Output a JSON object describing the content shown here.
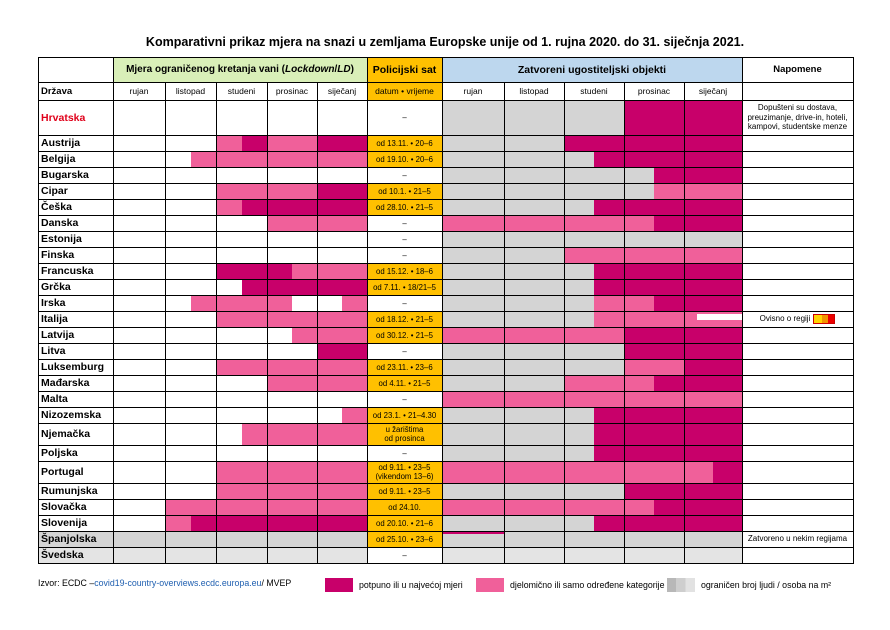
{
  "title": "Komparativni prikaz mjera na snazi u zemljama Europske unije od 1. rujna 2020. do 31. siječnja 2021.",
  "headers": {
    "lockdown_prefix": "Mjera ograničenog kretanja vani (",
    "lockdown_italic": "Lockdown",
    "lockdown_mid": "/",
    "lockdown_italic2": "LD",
    "lockdown_suffix": ")",
    "police": "Policijski sat",
    "closed": "Zatvoreni ugostiteljski objekti",
    "notes": "Napomene",
    "country_col": "Država",
    "police_sub": "datum • vrijeme",
    "months": [
      "rujan",
      "listopad",
      "studeni",
      "prosinac",
      "siječanj"
    ]
  },
  "colors": {
    "dark": "#C8006A",
    "light": "#F0609A",
    "grey": "#D4D4D4",
    "police_bg": "#FFC000",
    "lockdown_hdr": "#D9EFB8",
    "closed_hdr": "#BDD7EE",
    "hrvatska": "#E0001A"
  },
  "rows": [
    {
      "name": "Hrvatska",
      "police": "–",
      "note": "Dopušteni su dostava,\npreuzimanje, drive-in, hoteli,\nkampovi, studentske menze",
      "lock": "WWWWWWWWWW",
      "closed": "GGGGGGDDDD"
    },
    {
      "name": "Austrija",
      "police": "od 13.11. • 20–6",
      "note": "",
      "lock": "WWWWLDLLDD",
      "closed": "GGGGDDDDDD"
    },
    {
      "name": "Belgija",
      "police": "od 19.10. • 20–6",
      "note": "",
      "lock": "WWWLLLLLLL",
      "closed": "GGGGGDDDDD"
    },
    {
      "name": "Bugarska",
      "police": "–",
      "note": "",
      "lock": "WWWWWWWWWW",
      "closed": "GGGGGGGDDD"
    },
    {
      "name": "Cipar",
      "police": "od 10.1. • 21–5",
      "note": "",
      "lock": "WWWWLLLLDD",
      "closed": "GGGGGGGLLL"
    },
    {
      "name": "Češka",
      "police": "od 28.10. • 21–5",
      "note": "",
      "lock": "WWWWLDDDDD",
      "closed": "GGGGGDDDDD"
    },
    {
      "name": "Danska",
      "police": "–",
      "note": "",
      "lock": "WWWWWWLLLL",
      "closed": "LLLLLLLDDD"
    },
    {
      "name": "Estonija",
      "police": "–",
      "note": "",
      "lock": "WWWWWWWWWW",
      "closed": "GGGGGGGGGG"
    },
    {
      "name": "Finska",
      "police": "–",
      "note": "",
      "lock": "WWWWWWWWWW",
      "closed": "GGGGLLLLLL"
    },
    {
      "name": "Francuska",
      "police": "od 15.12. • 18–6",
      "note": "",
      "lock": "WWWWDDDLLL",
      "closed": "GGGGGDDDDD"
    },
    {
      "name": "Grčka",
      "police": "od 7.11. • 18/21–5",
      "note": "",
      "lock": "WWWWWDDDDD",
      "closed": "GGGGGDDDDD"
    },
    {
      "name": "Irska",
      "police": "–",
      "note": "",
      "lock": "WWWLLLLWWL",
      "closed": "GGGGGLLDDD"
    },
    {
      "name": "Italija",
      "police": "od 18.12. • 21–5",
      "note": "Ovisno o regiji",
      "lock": "WWWWLLLLLL",
      "closed": "GGGGGLLLLL"
    },
    {
      "name": "Latvija",
      "police": "od 30.12. • 21–5",
      "note": "",
      "lock": "WWWWWWWLLL",
      "closed": "LLLLLLDDDD"
    },
    {
      "name": "Litva",
      "police": "–",
      "note": "",
      "lock": "WWWWWWWWDD",
      "closed": "GGGGGGDDDD"
    },
    {
      "name": "Luksemburg",
      "police": "od 23.11. • 23–6",
      "note": "",
      "lock": "WWWWLLLLLL",
      "closed": "GGGGGGLLDD"
    },
    {
      "name": "Mađarska",
      "police": "od 4.11. • 21–5",
      "note": "",
      "lock": "WWWWWWLLLL",
      "closed": "GGGGLLLDDD"
    },
    {
      "name": "Malta",
      "police": "–",
      "note": "",
      "lock": "WWWWWWWWWW",
      "closed": "LLLLLLLLLL"
    },
    {
      "name": "Nizozemska",
      "police": "od 23.1. • 21–4.30",
      "note": "",
      "lock": "WWWWWWWWWL",
      "closed": "GGGGGDDDDD"
    },
    {
      "name": "Njemačka",
      "police": "u žarištima\nod prosinca",
      "note": "",
      "lock": "WWWWWLLLLL",
      "closed": "GGGGGDDDDD"
    },
    {
      "name": "Poljska",
      "police": "–",
      "note": "",
      "lock": "WWWWWWWWWW",
      "closed": "GGGGGDDDDD"
    },
    {
      "name": "Portugal",
      "police": "od 9.11. • 23–5\n(vikendom 13–6)",
      "note": "",
      "lock": "WWWWLLLLLL",
      "closed": "LLLLLLLLLD"
    },
    {
      "name": "Rumunjska",
      "police": "od 9.11. • 23–5",
      "note": "",
      "lock": "WWWWLLLLLL",
      "closed": "GGGGGGDDDD"
    },
    {
      "name": "Slovačka",
      "police": "od 24.10.",
      "note": "",
      "lock": "WWLLLLLLLL",
      "closed": "LLLLLLLDDD"
    },
    {
      "name": "Slovenija",
      "police": "od 20.10. • 21–6",
      "note": "",
      "lock": "WWLDDDDDDD",
      "closed": "GGGGGDDDDD"
    },
    {
      "name": "Španjolska",
      "police": "od 25.10. • 23–6",
      "note": "Zatvoreno u nekim regijama",
      "lock": "GGGGGGGGGG",
      "closed": "GGGGGGGGGG"
    },
    {
      "name": "Švedska",
      "police": "–",
      "note": "",
      "lock": "WWWWWWWWWW",
      "closed": "WWWWWWWWWW"
    }
  ],
  "footer": {
    "source_prefix": "Izvor: ECDC – ",
    "source_link": "covid19-country-overviews.ecdc.europa.eu",
    "source_suffix": " / MVEP",
    "legend_dark": "potpuno ili u najvećoj mjeri",
    "legend_light": "djelomično ili samo određene kategorije",
    "legend_grey": "ograničen broj ljudi / osoba na m²"
  }
}
